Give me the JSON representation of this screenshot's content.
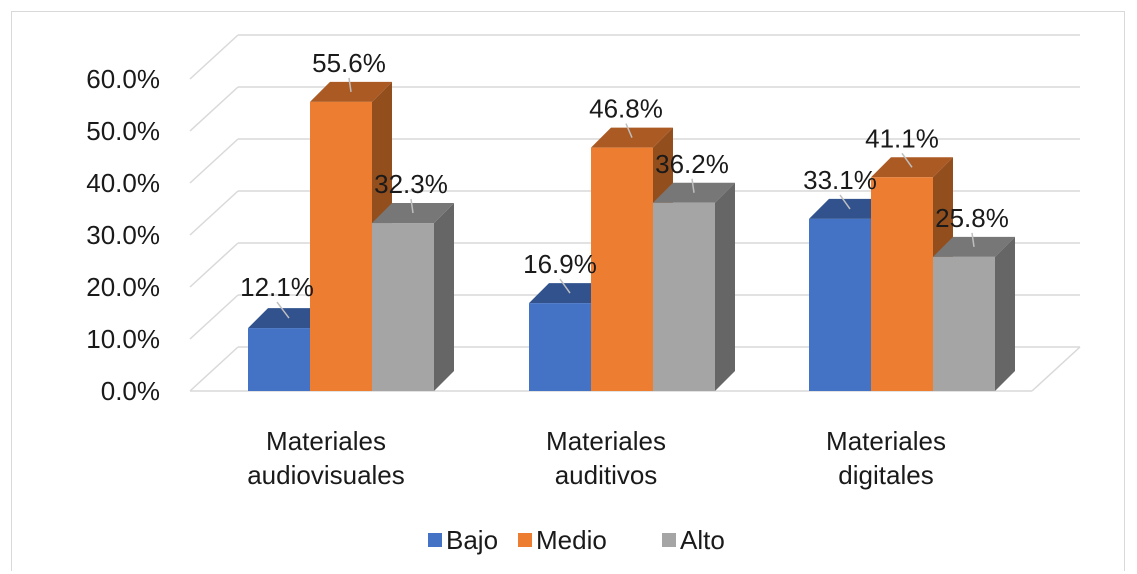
{
  "chart_data": {
    "type": "bar",
    "style": "3d-clustered-column",
    "title": "",
    "xlabel": "",
    "ylabel": "",
    "ylim": [
      0,
      60
    ],
    "yticks": [
      "0.0%",
      "10.0%",
      "20.0%",
      "30.0%",
      "40.0%",
      "50.0%",
      "60.0%"
    ],
    "categories": [
      [
        "Materiales",
        "audiovisuales"
      ],
      [
        "Materiales",
        "auditivos"
      ],
      [
        "Materiales",
        "digitales"
      ]
    ],
    "series": [
      {
        "name": "Bajo",
        "color": "#4472c4",
        "values": [
          12.1,
          16.9,
          33.1
        ],
        "labels": [
          "12.1%",
          "16.9%",
          "33.1%"
        ]
      },
      {
        "name": "Medio",
        "color": "#ed7d31",
        "values": [
          55.6,
          46.8,
          41.1
        ],
        "labels": [
          "55.6%",
          "46.8%",
          "41.1%"
        ]
      },
      {
        "name": "Alto",
        "color": "#a5a5a5",
        "values": [
          32.3,
          36.2,
          25.8
        ],
        "labels": [
          "32.3%",
          "36.2%",
          "25.8%"
        ]
      }
    ],
    "grid": true,
    "legend": "bottom"
  }
}
